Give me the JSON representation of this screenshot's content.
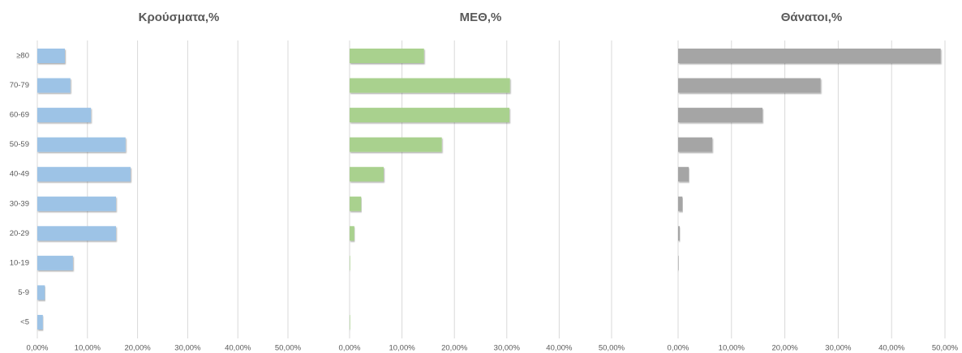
{
  "chart_data": [
    {
      "type": "hbar",
      "title": "Κρούσματα,%",
      "color": "#9dc3e6",
      "grid": true,
      "categories": [
        "≥80",
        "70-79",
        "60-69",
        "50-59",
        "40-49",
        "30-39",
        "20-29",
        "10-19",
        "5-9",
        "<5"
      ],
      "values": [
        5.5,
        6.6,
        10.7,
        17.6,
        18.6,
        15.7,
        15.7,
        7.1,
        1.5,
        1.1
      ],
      "xlim": [
        0,
        50
      ],
      "xticks": [
        {
          "value": 0,
          "label": "0,00%"
        },
        {
          "value": 10,
          "label": "10,00%"
        },
        {
          "value": 20,
          "label": "20,00%"
        },
        {
          "value": 30,
          "label": "30,00%"
        },
        {
          "value": 40,
          "label": "40,00%"
        },
        {
          "value": 50,
          "label": "50,00%"
        }
      ]
    },
    {
      "type": "hbar",
      "title": "ΜΕΘ,%",
      "color": "#a9d18e",
      "grid": true,
      "categories": [
        null,
        null,
        null,
        null,
        null,
        null,
        null,
        null,
        null,
        null
      ],
      "values": [
        14.2,
        30.6,
        30.5,
        17.6,
        6.5,
        2.2,
        0.9,
        0.1,
        0,
        0.1
      ],
      "xlim": [
        0,
        50
      ],
      "xticks": [
        {
          "value": 0,
          "label": "0,00%"
        },
        {
          "value": 10,
          "label": "10,00%"
        },
        {
          "value": 20,
          "label": "20,00%"
        },
        {
          "value": 30,
          "label": "30,00%"
        },
        {
          "value": 40,
          "label": "40,00%"
        },
        {
          "value": 50,
          "label": "50,00%"
        }
      ]
    },
    {
      "type": "hbar",
      "title": "Θάνατοι,%",
      "color": "#a5a5a5",
      "grid": true,
      "categories": [
        null,
        null,
        null,
        null,
        null,
        null,
        null,
        null,
        null,
        null
      ],
      "values": [
        49.2,
        26.7,
        15.8,
        6.4,
        2.0,
        0.8,
        0.3,
        0.1,
        0,
        0
      ],
      "xlim": [
        0,
        50
      ],
      "xticks": [
        {
          "value": 0,
          "label": "0,00%"
        },
        {
          "value": 10,
          "label": "10,00%"
        },
        {
          "value": 20,
          "label": "20,00%"
        },
        {
          "value": 30,
          "label": "30,00%"
        },
        {
          "value": 40,
          "label": "40,00%"
        },
        {
          "value": 50,
          "label": "50,00%"
        }
      ]
    }
  ]
}
